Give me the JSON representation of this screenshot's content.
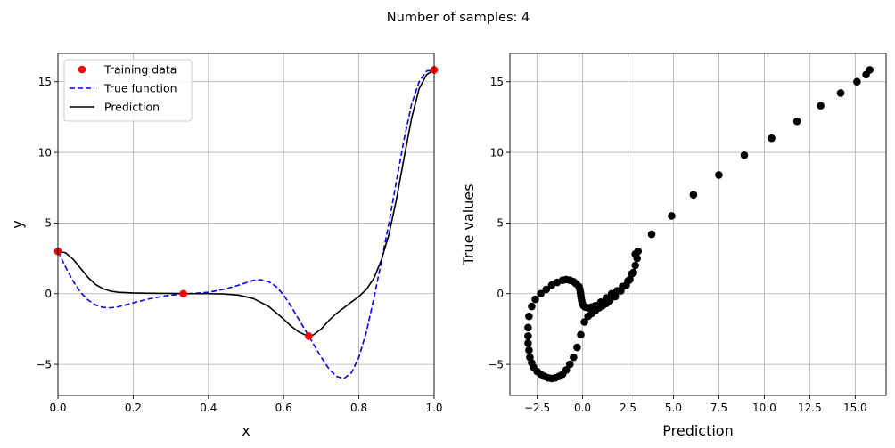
{
  "figure": {
    "suptitle": "Number of samples: 4"
  },
  "chart_data": [
    {
      "type": "line",
      "xlabel": "x",
      "ylabel": "y",
      "xlim": [
        0,
        1
      ],
      "ylim": [
        -7.2,
        17
      ],
      "xticks": [
        0.0,
        0.2,
        0.4,
        0.6,
        0.8,
        1.0
      ],
      "xtick_labels": [
        "0.0",
        "0.2",
        "0.4",
        "0.6",
        "0.8",
        "1.0"
      ],
      "yticks": [
        -5,
        0,
        5,
        10,
        15
      ],
      "ytick_labels": [
        "−5",
        "0",
        "5",
        "10",
        "15"
      ],
      "grid": true,
      "legend_position": "top-left",
      "series": [
        {
          "name": "Training data",
          "kind": "scatter",
          "color": "#ff0000",
          "x": [
            0.0,
            0.3333,
            0.6667,
            1.0
          ],
          "y": [
            3.0,
            0.0,
            -3.0,
            15.84
          ]
        },
        {
          "name": "True function",
          "kind": "line",
          "style": "dashed",
          "color": "#0000ff",
          "x": [
            0.0,
            0.02,
            0.04,
            0.06,
            0.08,
            0.1,
            0.12,
            0.14,
            0.16,
            0.18,
            0.2,
            0.24,
            0.28,
            0.32,
            0.36,
            0.4,
            0.44,
            0.48,
            0.52,
            0.54,
            0.56,
            0.58,
            0.6,
            0.62,
            0.64,
            0.66,
            0.68,
            0.7,
            0.72,
            0.74,
            0.76,
            0.78,
            0.8,
            0.82,
            0.84,
            0.86,
            0.88,
            0.9,
            0.92,
            0.94,
            0.96,
            0.98,
            1.0
          ],
          "y": [
            3.0,
            1.9,
            0.9,
            0.1,
            -0.45,
            -0.8,
            -0.97,
            -1.0,
            -0.93,
            -0.8,
            -0.65,
            -0.38,
            -0.18,
            -0.05,
            0.02,
            0.1,
            0.3,
            0.6,
            0.95,
            0.98,
            0.85,
            0.5,
            -0.1,
            -0.9,
            -1.8,
            -2.7,
            -3.6,
            -4.5,
            -5.3,
            -5.85,
            -6.0,
            -5.6,
            -4.5,
            -2.7,
            -0.3,
            2.3,
            5.0,
            8.0,
            10.9,
            13.4,
            15.0,
            15.75,
            15.84
          ]
        },
        {
          "name": "Prediction",
          "kind": "line",
          "style": "solid",
          "color": "#000000",
          "x": [
            0.0,
            0.02,
            0.04,
            0.06,
            0.08,
            0.1,
            0.12,
            0.14,
            0.16,
            0.2,
            0.24,
            0.28,
            0.32,
            0.36,
            0.4,
            0.44,
            0.48,
            0.52,
            0.56,
            0.58,
            0.6,
            0.62,
            0.64,
            0.66,
            0.67,
            0.68,
            0.7,
            0.72,
            0.74,
            0.76,
            0.78,
            0.8,
            0.82,
            0.84,
            0.86,
            0.88,
            0.9,
            0.92,
            0.94,
            0.96,
            0.98,
            1.0
          ],
          "y": [
            3.0,
            2.9,
            2.45,
            1.8,
            1.15,
            0.65,
            0.35,
            0.18,
            0.1,
            0.05,
            0.03,
            0.02,
            0.01,
            0.0,
            0.0,
            -0.02,
            -0.1,
            -0.35,
            -0.9,
            -1.35,
            -1.8,
            -2.3,
            -2.7,
            -2.95,
            -3.0,
            -2.9,
            -2.5,
            -1.9,
            -1.4,
            -1.0,
            -0.6,
            -0.2,
            0.3,
            1.1,
            2.4,
            4.2,
            6.7,
            9.6,
            12.4,
            14.5,
            15.5,
            15.84
          ]
        }
      ]
    },
    {
      "type": "scatter",
      "xlabel": "Prediction",
      "ylabel": "True values",
      "xlim": [
        -4.0,
        16.7
      ],
      "ylim": [
        -7.2,
        17
      ],
      "xticks": [
        -2.5,
        0.0,
        2.5,
        5.0,
        7.5,
        10.0,
        12.5,
        15.0
      ],
      "xtick_labels": [
        "−2.5",
        "0.0",
        "2.5",
        "5.0",
        "7.5",
        "10.0",
        "12.5",
        "15.0"
      ],
      "yticks": [
        -5,
        0,
        5,
        10,
        15
      ],
      "ytick_labels": [
        "−5",
        "0",
        "5",
        "10",
        "15"
      ],
      "grid": true,
      "series": [
        {
          "color": "#000000",
          "x": [
            -3.0,
            -3.0,
            -2.95,
            -2.9,
            -2.8,
            -2.7,
            -2.5,
            -2.3,
            -2.1,
            -1.9,
            -1.7,
            -1.5,
            -1.3,
            -1.1,
            -0.9,
            -0.7,
            -0.5,
            -0.3,
            -0.1,
            0.1,
            0.3,
            0.5,
            0.7,
            0.9,
            1.1,
            1.3,
            1.5,
            1.8,
            2.1,
            2.4,
            2.6,
            2.8,
            2.9,
            3.0,
            3.05,
            2.9,
            2.7,
            2.5,
            2.2,
            1.9,
            1.6,
            1.3,
            1.0,
            0.7,
            0.5,
            0.3,
            0.15,
            0.05,
            -0.02,
            -0.05,
            -0.08,
            -0.1,
            -0.12,
            -0.15,
            -0.2,
            -0.35,
            -0.5,
            -0.7,
            -0.9,
            -1.1,
            -1.4,
            -1.7,
            -2.0,
            -2.3,
            -2.6,
            -2.8,
            -2.95,
            -3.0,
            3.8,
            4.9,
            6.1,
            7.5,
            8.9,
            10.4,
            11.8,
            13.1,
            14.2,
            15.1,
            15.6,
            15.8
          ],
          "y": [
            -3.0,
            -3.5,
            -4.0,
            -4.5,
            -4.9,
            -5.2,
            -5.5,
            -5.7,
            -5.85,
            -5.95,
            -6.0,
            -5.95,
            -5.85,
            -5.7,
            -5.4,
            -5.0,
            -4.5,
            -3.8,
            -2.9,
            -2.0,
            -1.6,
            -1.4,
            -1.2,
            -1.0,
            -0.85,
            -0.7,
            -0.5,
            -0.2,
            0.2,
            0.6,
            1.0,
            1.5,
            2.0,
            2.5,
            3.0,
            2.8,
            1.4,
            0.9,
            0.5,
            0.2,
            0.0,
            -0.3,
            -0.6,
            -0.85,
            -0.95,
            -1.0,
            -0.95,
            -0.85,
            -0.7,
            -0.5,
            -0.3,
            -0.1,
            0.1,
            0.3,
            0.5,
            0.7,
            0.85,
            0.95,
            1.0,
            0.95,
            0.8,
            0.6,
            0.3,
            0.0,
            -0.4,
            -0.9,
            -1.6,
            -2.4,
            4.2,
            5.5,
            7.0,
            8.4,
            9.8,
            11.0,
            12.2,
            13.3,
            14.2,
            15.0,
            15.5,
            15.84
          ]
        }
      ]
    }
  ]
}
